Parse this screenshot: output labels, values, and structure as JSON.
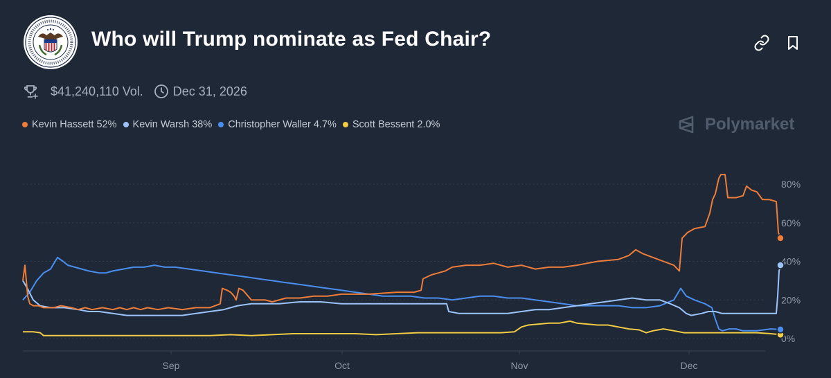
{
  "header": {
    "title": "Who will Trump nominate as Fed Chair?",
    "logo_icon": "fed-seal-icon",
    "link_icon": "link-icon",
    "bookmark_icon": "bookmark-icon"
  },
  "meta": {
    "volume": "$41,240,110 Vol.",
    "end_date": "Dec 31, 2026",
    "volume_icon": "trophy-icon",
    "date_icon": "clock-icon"
  },
  "brand": {
    "name": "Polymarket",
    "icon": "polymarket-logo-icon"
  },
  "legend": [
    {
      "name": "Kevin Hassett",
      "value": "52%",
      "color": "#ef7d3a"
    },
    {
      "name": "Kevin Warsh",
      "value": "38%",
      "color": "#9cc4fb"
    },
    {
      "name": "Christopher Waller",
      "value": "4.7%",
      "color": "#4a8ff0"
    },
    {
      "name": "Scott Bessent",
      "value": "2.0%",
      "color": "#f2cc45"
    }
  ],
  "chart_data": {
    "type": "line",
    "x_ticks": [
      "Sep",
      "Oct",
      "Nov",
      "Dec"
    ],
    "y_ticks": [
      "0%",
      "20%",
      "40%",
      "60%",
      "80%"
    ],
    "ylim": [
      0,
      90
    ],
    "grid": "horizontal dotted",
    "series": [
      {
        "name": "Kevin Hassett",
        "color": "#ef7d3a",
        "points": [
          [
            0,
            30
          ],
          [
            3,
            38
          ],
          [
            7,
            22
          ],
          [
            10,
            18
          ],
          [
            15,
            17
          ],
          [
            22,
            17
          ],
          [
            30,
            16
          ],
          [
            45,
            16
          ],
          [
            55,
            17
          ],
          [
            70,
            16
          ],
          [
            80,
            15
          ],
          [
            90,
            16
          ],
          [
            100,
            15
          ],
          [
            115,
            16
          ],
          [
            130,
            15
          ],
          [
            140,
            16
          ],
          [
            150,
            15
          ],
          [
            160,
            16
          ],
          [
            170,
            15
          ],
          [
            180,
            16
          ],
          [
            195,
            15
          ],
          [
            210,
            16
          ],
          [
            230,
            15
          ],
          [
            250,
            16
          ],
          [
            270,
            16
          ],
          [
            285,
            18
          ],
          [
            288,
            26
          ],
          [
            295,
            25
          ],
          [
            300,
            24
          ],
          [
            305,
            22
          ],
          [
            308,
            20
          ],
          [
            312,
            26
          ],
          [
            318,
            25
          ],
          [
            330,
            20
          ],
          [
            350,
            20
          ],
          [
            360,
            19
          ],
          [
            380,
            21
          ],
          [
            400,
            21
          ],
          [
            420,
            22
          ],
          [
            440,
            22
          ],
          [
            460,
            23
          ],
          [
            500,
            23
          ],
          [
            540,
            24
          ],
          [
            565,
            24
          ],
          [
            575,
            25
          ],
          [
            578,
            31
          ],
          [
            590,
            33
          ],
          [
            610,
            35
          ],
          [
            620,
            37
          ],
          [
            640,
            38
          ],
          [
            660,
            38
          ],
          [
            680,
            39
          ],
          [
            700,
            37
          ],
          [
            720,
            38
          ],
          [
            740,
            36
          ],
          [
            760,
            37
          ],
          [
            780,
            37
          ],
          [
            800,
            38
          ],
          [
            830,
            40
          ],
          [
            860,
            41
          ],
          [
            875,
            43
          ],
          [
            885,
            46
          ],
          [
            895,
            44
          ],
          [
            910,
            42
          ],
          [
            925,
            40
          ],
          [
            940,
            38
          ],
          [
            948,
            35
          ],
          [
            952,
            52
          ],
          [
            960,
            55
          ],
          [
            970,
            57
          ],
          [
            985,
            58
          ],
          [
            992,
            65
          ],
          [
            996,
            72
          ],
          [
            1000,
            75
          ],
          [
            1005,
            83
          ],
          [
            1008,
            85
          ],
          [
            1014,
            85
          ],
          [
            1018,
            73
          ],
          [
            1030,
            73
          ],
          [
            1040,
            74
          ],
          [
            1045,
            79
          ],
          [
            1052,
            77
          ],
          [
            1060,
            76
          ],
          [
            1068,
            72
          ],
          [
            1078,
            72
          ],
          [
            1088,
            71
          ],
          [
            1091,
            55
          ],
          [
            1094,
            52
          ]
        ]
      },
      {
        "name": "Kevin Warsh",
        "color": "#9cc4fb",
        "points": [
          [
            0,
            30
          ],
          [
            8,
            25
          ],
          [
            15,
            20
          ],
          [
            25,
            17
          ],
          [
            40,
            16
          ],
          [
            60,
            16
          ],
          [
            80,
            15
          ],
          [
            95,
            14
          ],
          [
            110,
            14
          ],
          [
            130,
            13
          ],
          [
            150,
            12
          ],
          [
            170,
            12
          ],
          [
            190,
            12
          ],
          [
            210,
            12
          ],
          [
            230,
            12
          ],
          [
            250,
            13
          ],
          [
            270,
            14
          ],
          [
            290,
            15
          ],
          [
            310,
            17
          ],
          [
            330,
            18
          ],
          [
            350,
            18
          ],
          [
            370,
            18
          ],
          [
            400,
            19
          ],
          [
            430,
            19
          ],
          [
            460,
            18
          ],
          [
            490,
            18
          ],
          [
            520,
            18
          ],
          [
            550,
            18
          ],
          [
            580,
            18
          ],
          [
            600,
            18
          ],
          [
            612,
            18
          ],
          [
            615,
            14
          ],
          [
            630,
            13
          ],
          [
            650,
            13
          ],
          [
            680,
            13
          ],
          [
            700,
            13
          ],
          [
            720,
            14
          ],
          [
            740,
            15
          ],
          [
            760,
            15
          ],
          [
            780,
            16
          ],
          [
            800,
            17
          ],
          [
            820,
            18
          ],
          [
            840,
            19
          ],
          [
            860,
            20
          ],
          [
            880,
            21
          ],
          [
            900,
            20
          ],
          [
            920,
            20
          ],
          [
            935,
            18
          ],
          [
            948,
            16
          ],
          [
            958,
            13
          ],
          [
            965,
            12
          ],
          [
            980,
            13
          ],
          [
            990,
            14
          ],
          [
            1000,
            14
          ],
          [
            1010,
            13
          ],
          [
            1030,
            13
          ],
          [
            1050,
            13
          ],
          [
            1070,
            13
          ],
          [
            1088,
            13
          ],
          [
            1090,
            22
          ],
          [
            1092,
            35
          ],
          [
            1094,
            38
          ]
        ]
      },
      {
        "name": "Christopher Waller",
        "color": "#4a8ff0",
        "points": [
          [
            0,
            20
          ],
          [
            10,
            24
          ],
          [
            20,
            30
          ],
          [
            30,
            34
          ],
          [
            40,
            36
          ],
          [
            50,
            42
          ],
          [
            58,
            40
          ],
          [
            65,
            38
          ],
          [
            75,
            37
          ],
          [
            85,
            36
          ],
          [
            95,
            35
          ],
          [
            110,
            34
          ],
          [
            120,
            34
          ],
          [
            130,
            35
          ],
          [
            145,
            36
          ],
          [
            160,
            37
          ],
          [
            175,
            37
          ],
          [
            190,
            38
          ],
          [
            205,
            37
          ],
          [
            220,
            37
          ],
          [
            240,
            36
          ],
          [
            260,
            35
          ],
          [
            280,
            34
          ],
          [
            300,
            33
          ],
          [
            320,
            32
          ],
          [
            340,
            31
          ],
          [
            360,
            30
          ],
          [
            380,
            29
          ],
          [
            400,
            28
          ],
          [
            420,
            27
          ],
          [
            440,
            26
          ],
          [
            460,
            25
          ],
          [
            480,
            24
          ],
          [
            500,
            23
          ],
          [
            520,
            22
          ],
          [
            540,
            22
          ],
          [
            560,
            22
          ],
          [
            580,
            21
          ],
          [
            600,
            21
          ],
          [
            620,
            20
          ],
          [
            640,
            21
          ],
          [
            660,
            22
          ],
          [
            680,
            22
          ],
          [
            700,
            21
          ],
          [
            720,
            21
          ],
          [
            740,
            20
          ],
          [
            760,
            19
          ],
          [
            780,
            18
          ],
          [
            800,
            17
          ],
          [
            820,
            17
          ],
          [
            840,
            17
          ],
          [
            860,
            17
          ],
          [
            880,
            16
          ],
          [
            900,
            16
          ],
          [
            920,
            17
          ],
          [
            940,
            20
          ],
          [
            950,
            26
          ],
          [
            958,
            22
          ],
          [
            970,
            20
          ],
          [
            985,
            18
          ],
          [
            995,
            16
          ],
          [
            1000,
            10
          ],
          [
            1005,
            5
          ],
          [
            1010,
            4
          ],
          [
            1020,
            5
          ],
          [
            1030,
            5
          ],
          [
            1040,
            4
          ],
          [
            1060,
            4
          ],
          [
            1080,
            5
          ],
          [
            1094,
            4.7
          ]
        ]
      },
      {
        "name": "Scott Bessent",
        "color": "#f2cc45",
        "points": [
          [
            0,
            3.5
          ],
          [
            15,
            3.5
          ],
          [
            25,
            3
          ],
          [
            30,
            1.5
          ],
          [
            60,
            1.5
          ],
          [
            90,
            1.5
          ],
          [
            120,
            1.5
          ],
          [
            150,
            1.5
          ],
          [
            180,
            1.5
          ],
          [
            210,
            1.5
          ],
          [
            240,
            1.5
          ],
          [
            270,
            1.5
          ],
          [
            300,
            2
          ],
          [
            330,
            1.5
          ],
          [
            360,
            2
          ],
          [
            390,
            2.5
          ],
          [
            420,
            2.5
          ],
          [
            450,
            2.5
          ],
          [
            480,
            2.5
          ],
          [
            510,
            2
          ],
          [
            540,
            2.5
          ],
          [
            570,
            3
          ],
          [
            600,
            3
          ],
          [
            630,
            3
          ],
          [
            660,
            3
          ],
          [
            690,
            3
          ],
          [
            710,
            3.5
          ],
          [
            720,
            6
          ],
          [
            730,
            7
          ],
          [
            745,
            7.5
          ],
          [
            760,
            8
          ],
          [
            775,
            8
          ],
          [
            790,
            9
          ],
          [
            800,
            8
          ],
          [
            815,
            7.5
          ],
          [
            830,
            7
          ],
          [
            845,
            7
          ],
          [
            860,
            6
          ],
          [
            875,
            5
          ],
          [
            890,
            4.5
          ],
          [
            900,
            3
          ],
          [
            910,
            4
          ],
          [
            925,
            5
          ],
          [
            940,
            4
          ],
          [
            955,
            3
          ],
          [
            970,
            3
          ],
          [
            985,
            3
          ],
          [
            1000,
            3
          ],
          [
            1020,
            3
          ],
          [
            1040,
            3
          ],
          [
            1060,
            3
          ],
          [
            1080,
            2.5
          ],
          [
            1094,
            2
          ]
        ]
      }
    ]
  }
}
